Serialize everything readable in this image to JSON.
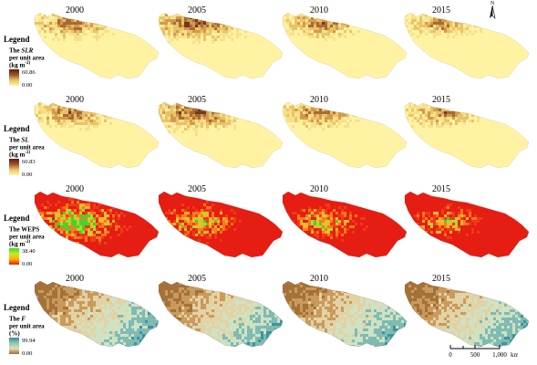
{
  "years": [
    "2000",
    "2005",
    "2010",
    "2015"
  ],
  "north_label": "N",
  "rows": [
    {
      "id": "slr",
      "legend_title": "Legend",
      "lines": [
        [
          "The ",
          "SLR",
          ""
        ],
        [
          "per unit area",
          "",
          ""
        ],
        [
          "(kg m",
          "",
          "-2)"
        ]
      ],
      "max": "60.86",
      "min": "0.00",
      "ramp": [
        "#5a1c0a",
        "#a0522d",
        "#e8c36a",
        "#fff6a8"
      ],
      "palette": [
        "#fff3a3",
        "#f7e08a",
        "#e8c36a",
        "#d39a4a",
        "#a86a35",
        "#6e3a1e"
      ]
    },
    {
      "id": "sl",
      "legend_title": "Legend",
      "lines": [
        [
          "The ",
          "SL",
          ""
        ],
        [
          "per unit area",
          "",
          ""
        ],
        [
          "(kg m",
          "",
          "-2)"
        ]
      ],
      "max": "60.83",
      "min": "0.00",
      "ramp": [
        "#5a1c0a",
        "#a0522d",
        "#e8c36a",
        "#fff6a8"
      ],
      "palette": [
        "#fff3a3",
        "#f7e08a",
        "#e8c36a",
        "#d39a4a",
        "#a86a35",
        "#6e3a1e"
      ]
    },
    {
      "id": "weps",
      "legend_title": "Legend",
      "lines": [
        [
          "The WEPS",
          "",
          ""
        ],
        [
          "per unit area",
          "",
          ""
        ],
        [
          "(kg m",
          "",
          "-2)"
        ]
      ],
      "max": "38.40",
      "min": "0.00",
      "ramp": [
        "#39d82b",
        "#c8e82a",
        "#ffb000",
        "#e81c10"
      ],
      "palette": [
        "#e51d12",
        "#f03a1a",
        "#ff7a1a",
        "#ffb62a",
        "#9de12f",
        "#4ccf2c"
      ]
    },
    {
      "id": "f",
      "legend_title": "Legend",
      "lines": [
        [
          "The ",
          "F",
          ""
        ],
        [
          "per unit area",
          "",
          ""
        ],
        [
          "(%)",
          "",
          ""
        ]
      ],
      "max": "99.94",
      "min": "0.00",
      "ramp": [
        "#2e8f99",
        "#8fc7b4",
        "#e6dcb0",
        "#a06a34"
      ],
      "palette": [
        "#a47238",
        "#c99a5c",
        "#e3d2a4",
        "#cfe2c2",
        "#7fbab4",
        "#3a95a0"
      ]
    }
  ],
  "scale_bar": {
    "labels": [
      "0",
      "500",
      "1,000"
    ],
    "unit": "km"
  }
}
